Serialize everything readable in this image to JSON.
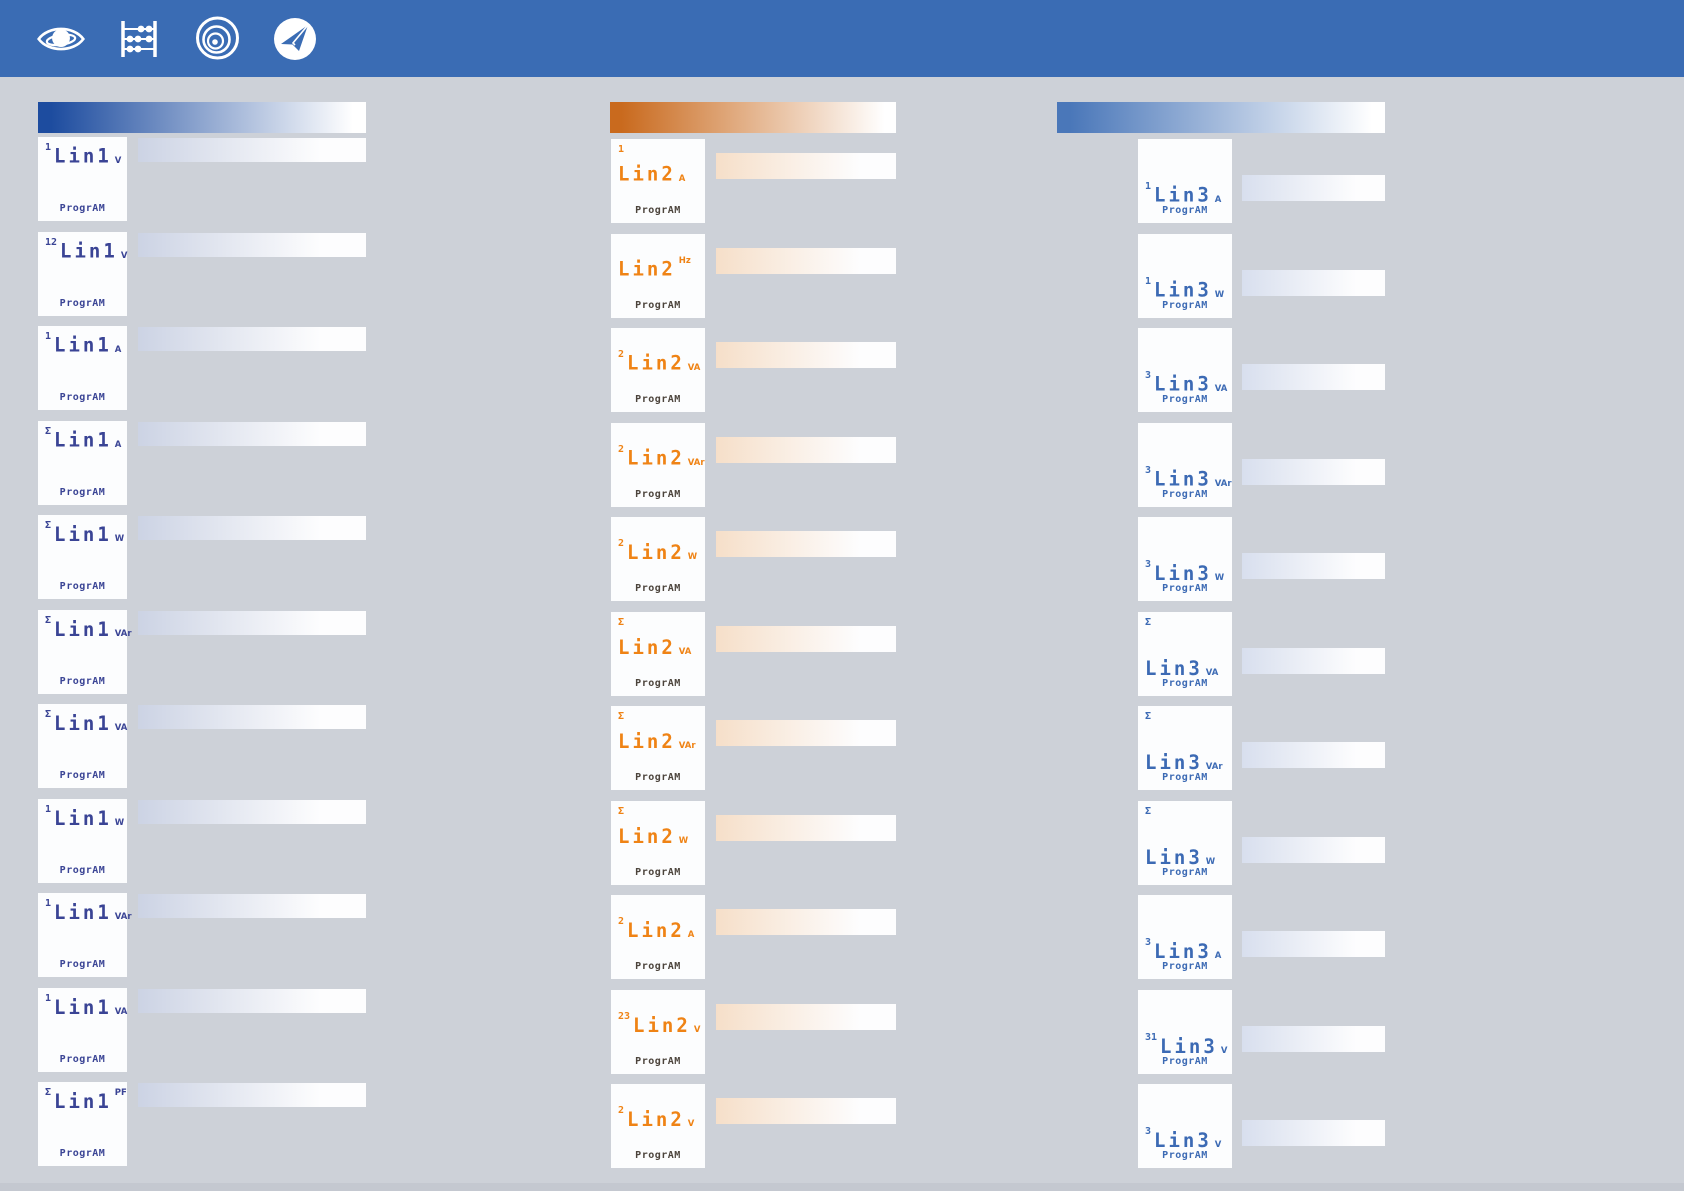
{
  "topbar": {
    "background": "#3a6cb4",
    "icons": [
      "eye-icon",
      "abacus-icon",
      "lens-icon",
      "send-icon"
    ]
  },
  "background": "#cdd1d8",
  "footer_strip_color": "#c4c8d0",
  "columns": [
    {
      "name": "line-1",
      "label": "Lin1",
      "accent": "#1d4c9f",
      "text_color": "#3a4495",
      "footer_color": "#3a4495",
      "bar_color": "#ccd3e4",
      "footer": "ProgrAM",
      "panels": [
        {
          "sup": "1",
          "unit": "V"
        },
        {
          "sup": "12",
          "unit": "V"
        },
        {
          "sup": "1",
          "unit": "A"
        },
        {
          "sup": "Σ",
          "unit": "A"
        },
        {
          "sup": "Σ",
          "unit": "W"
        },
        {
          "sup": "Σ",
          "unit": "VAr"
        },
        {
          "sup": "Σ",
          "unit": "VA"
        },
        {
          "sup": "1",
          "unit": "W"
        },
        {
          "sup": "1",
          "unit": "VAr"
        },
        {
          "sup": "1",
          "unit": "VA"
        },
        {
          "sup": "Σ",
          "unit": "PF",
          "unit_raised": true
        }
      ]
    },
    {
      "name": "line-2",
      "label": "Lin2",
      "accent": "#c96a1e",
      "text_color": "#ef8315",
      "footer_color": "#4c443c",
      "bar_color": "#f6dfc9",
      "footer": "ProgrAM",
      "panels": [
        {
          "sup": "1",
          "unit": "A",
          "sup_corner": true
        },
        {
          "sup": "",
          "unit": "Hz",
          "unit_raised": true
        },
        {
          "sup": "2",
          "unit": "VA"
        },
        {
          "sup": "2",
          "unit": "VAr"
        },
        {
          "sup": "2",
          "unit": "W"
        },
        {
          "sup": "Σ",
          "unit": "VA",
          "sup_corner": true
        },
        {
          "sup": "Σ",
          "unit": "VAr",
          "sup_corner": true
        },
        {
          "sup": "Σ",
          "unit": "W",
          "sup_corner": true
        },
        {
          "sup": "2",
          "unit": "A"
        },
        {
          "sup": "23",
          "unit": "V"
        },
        {
          "sup": "2",
          "unit": "V"
        }
      ]
    },
    {
      "name": "line-3",
      "label": "Lin3",
      "accent": "#4a77b9",
      "text_color": "#3c6ab4",
      "footer_color": "#3c6ab4",
      "bar_color": "#d8dfee",
      "footer": "ProgrAM",
      "panels": [
        {
          "sup": "1",
          "unit": "A"
        },
        {
          "sup": "1",
          "unit": "W"
        },
        {
          "sup": "3",
          "unit": "VA"
        },
        {
          "sup": "3",
          "unit": "VAr"
        },
        {
          "sup": "3",
          "unit": "W"
        },
        {
          "sup": "Σ",
          "unit": "VA",
          "sup_corner": true
        },
        {
          "sup": "Σ",
          "unit": "VAr",
          "sup_corner": true
        },
        {
          "sup": "Σ",
          "unit": "W",
          "sup_corner": true
        },
        {
          "sup": "3",
          "unit": "A"
        },
        {
          "sup": "31",
          "unit": "V"
        },
        {
          "sup": "3",
          "unit": "V"
        }
      ]
    }
  ]
}
